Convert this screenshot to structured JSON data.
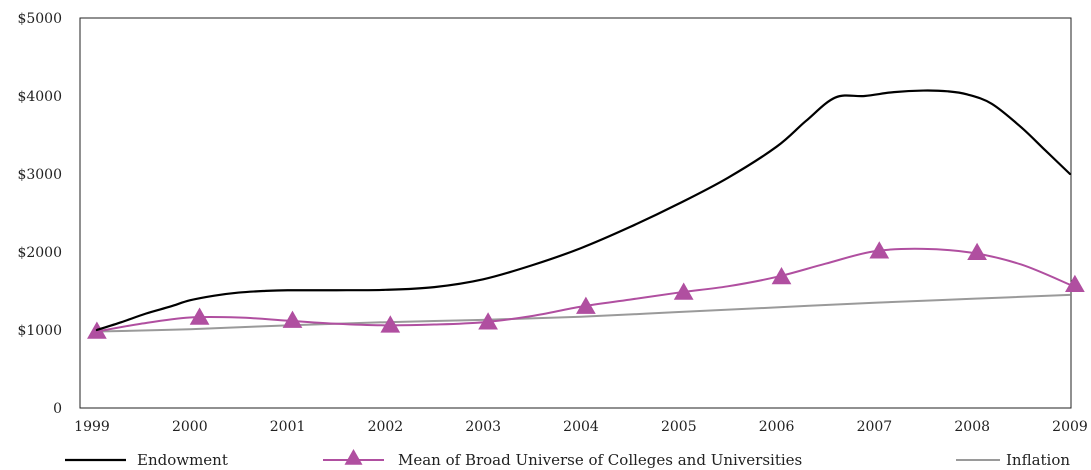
{
  "chart_data": {
    "type": "line",
    "x_label_ticks": [
      "1999",
      "2000",
      "2001",
      "2002",
      "2003",
      "2004",
      "2005",
      "2006",
      "2007",
      "2008",
      "2009"
    ],
    "y_tick_labels": [
      "0",
      "$1000",
      "$2000",
      "$3000",
      "$4000",
      "$5000"
    ],
    "ylim": [
      0,
      5000
    ],
    "xlim": [
      1999,
      2009
    ],
    "grid": false,
    "legend_position": "bottom",
    "series": [
      {
        "name": "Endowment",
        "color": "#000000",
        "marker": "none",
        "x": [
          1999.05,
          1999.3,
          1999.55,
          1999.8,
          2000.0,
          2000.25,
          2000.5,
          2000.75,
          2001.0,
          2001.5,
          2002.0,
          2002.5,
          2003.0,
          2003.5,
          2004.0,
          2004.5,
          2005.0,
          2005.5,
          2006.0,
          2006.3,
          2006.6,
          2006.9,
          2007.2,
          2007.5,
          2007.75,
          2007.95,
          2008.2,
          2008.5,
          2008.75,
          2009.0
        ],
        "values": [
          1000,
          1100,
          1210,
          1300,
          1380,
          1440,
          1480,
          1500,
          1510,
          1510,
          1515,
          1550,
          1650,
          1830,
          2050,
          2320,
          2620,
          2950,
          3350,
          3680,
          3980,
          4000,
          4050,
          4070,
          4060,
          4020,
          3900,
          3600,
          3300,
          3000
        ]
      },
      {
        "name": "Mean of Broad Universe of Colleges and Universities",
        "color": "#b04fa0",
        "marker": "triangle",
        "x": [
          1999.05,
          1999.5,
          2000.0,
          2000.5,
          2001.0,
          2001.5,
          2002.0,
          2002.5,
          2003.0,
          2003.5,
          2004.0,
          2004.5,
          2005.0,
          2005.5,
          2006.0,
          2006.5,
          2007.0,
          2007.5,
          2008.0,
          2008.5,
          2009.0
        ],
        "values": [
          980,
          1080,
          1160,
          1160,
          1120,
          1080,
          1060,
          1070,
          1100,
          1180,
          1300,
          1390,
          1480,
          1560,
          1680,
          1850,
          2010,
          2040,
          1990,
          1840,
          1580
        ],
        "marker_x": [
          1999.05,
          2000.1,
          2001.05,
          2002.05,
          2003.05,
          2004.05,
          2005.05,
          2006.05,
          2007.05,
          2008.05,
          2009.05
        ],
        "marker_values": [
          980,
          1160,
          1120,
          1060,
          1100,
          1300,
          1480,
          1680,
          2010,
          1990,
          1580
        ]
      },
      {
        "name": "Inflation",
        "color": "#9a9a9a",
        "marker": "none",
        "x": [
          1999.05,
          2000.0,
          2001.0,
          2002.0,
          2003.0,
          2004.0,
          2005.0,
          2006.0,
          2007.0,
          2008.0,
          2009.0
        ],
        "values": [
          980,
          1010,
          1060,
          1100,
          1130,
          1170,
          1230,
          1290,
          1350,
          1400,
          1450
        ]
      }
    ]
  }
}
